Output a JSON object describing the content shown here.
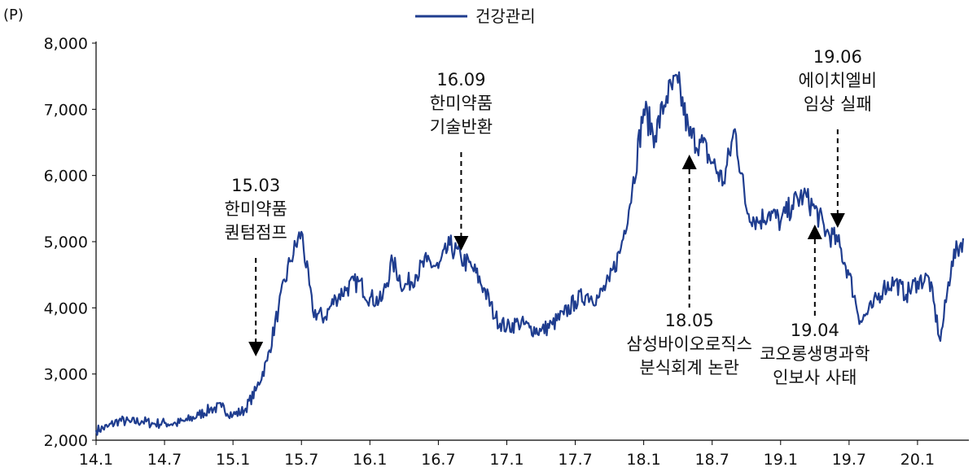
{
  "chart_data": {
    "type": "line",
    "unit_label": "(P)",
    "legend": [
      {
        "name": "건강관리",
        "color": "#1f3d8f"
      }
    ],
    "y_ticks": [
      "2,000",
      "3,000",
      "4,000",
      "5,000",
      "6,000",
      "7,000",
      "8,000"
    ],
    "ylim": [
      2000,
      8000
    ],
    "x_ticks": [
      "14.1",
      "14.7",
      "15.1",
      "15.7",
      "16.1",
      "16.7",
      "17.1",
      "17.7",
      "18.1",
      "18.7",
      "19.1",
      "19.7",
      "20.1"
    ],
    "series": [
      {
        "name": "건강관리",
        "color": "#1f3d8f",
        "points": [
          [
            "14.01",
            2150
          ],
          [
            "14.02",
            2200
          ],
          [
            "14.03",
            2300
          ],
          [
            "14.04",
            2270
          ],
          [
            "14.05",
            2290
          ],
          [
            "14.06",
            2250
          ],
          [
            "14.07",
            2260
          ],
          [
            "14.08",
            2250
          ],
          [
            "14.09",
            2300
          ],
          [
            "14.10",
            2380
          ],
          [
            "14.11",
            2470
          ],
          [
            "14.12",
            2500
          ],
          [
            "15.01",
            2380
          ],
          [
            "15.02",
            2450
          ],
          [
            "15.03",
            2750
          ],
          [
            "15.04",
            3200
          ],
          [
            "15.05",
            4000
          ],
          [
            "15.06",
            4700
          ],
          [
            "15.07",
            5150
          ],
          [
            "15.08",
            3950
          ],
          [
            "15.09",
            3850
          ],
          [
            "15.10",
            4150
          ],
          [
            "15.11",
            4300
          ],
          [
            "15.12",
            4400
          ],
          [
            "16.01",
            4150
          ],
          [
            "16.02",
            4100
          ],
          [
            "16.03",
            4700
          ],
          [
            "16.04",
            4300
          ],
          [
            "16.05",
            4500
          ],
          [
            "16.06",
            4700
          ],
          [
            "16.07",
            4600
          ],
          [
            "16.08",
            4950
          ],
          [
            "16.09",
            4750
          ],
          [
            "16.10",
            4600
          ],
          [
            "16.11",
            4300
          ],
          [
            "16.12",
            3850
          ],
          [
            "17.01",
            3700
          ],
          [
            "17.02",
            3780
          ],
          [
            "17.03",
            3700
          ],
          [
            "17.04",
            3650
          ],
          [
            "17.05",
            3750
          ],
          [
            "17.06",
            3900
          ],
          [
            "17.07",
            4100
          ],
          [
            "17.08",
            4200
          ],
          [
            "17.09",
            4150
          ],
          [
            "17.10",
            4400
          ],
          [
            "17.11",
            4900
          ],
          [
            "17.12",
            5800
          ],
          [
            "18.01",
            7000
          ],
          [
            "18.02",
            6600
          ],
          [
            "18.03",
            7200
          ],
          [
            "18.04",
            7400
          ],
          [
            "18.05",
            6600
          ],
          [
            "18.06",
            6500
          ],
          [
            "18.07",
            6200
          ],
          [
            "18.08",
            5900
          ],
          [
            "18.09",
            6700
          ],
          [
            "18.10",
            5500
          ],
          [
            "18.11",
            5300
          ],
          [
            "18.12",
            5450
          ],
          [
            "19.01",
            5300
          ],
          [
            "19.02",
            5550
          ],
          [
            "19.03",
            5700
          ],
          [
            "19.04",
            5500
          ],
          [
            "19.05",
            5150
          ],
          [
            "19.06",
            5000
          ],
          [
            "19.07",
            4500
          ],
          [
            "19.08",
            3800
          ],
          [
            "19.09",
            4000
          ],
          [
            "19.10",
            4300
          ],
          [
            "19.11",
            4400
          ],
          [
            "19.12",
            4200
          ],
          [
            "20.01",
            4400
          ],
          [
            "20.02",
            4450
          ],
          [
            "20.03",
            3500
          ],
          [
            "20.04",
            4700
          ],
          [
            "20.05",
            5050
          ]
        ]
      }
    ],
    "annotations": [
      {
        "id": "ann-1503",
        "lines": [
          "15.03",
          "한미약품",
          "퀀텀점프"
        ],
        "date": "15.03",
        "arrow": "down"
      },
      {
        "id": "ann-1609",
        "lines": [
          "16.09",
          "한미약품",
          "기술반환"
        ],
        "date": "16.09",
        "arrow": "down"
      },
      {
        "id": "ann-1805",
        "lines": [
          "18.05",
          "삼성바이오로직스",
          "분식회계 논란"
        ],
        "date": "18.05",
        "arrow": "up"
      },
      {
        "id": "ann-1906",
        "lines": [
          "19.06",
          "에이치엘비",
          "임상 실패"
        ],
        "date": "19.06",
        "arrow": "down"
      },
      {
        "id": "ann-1904",
        "lines": [
          "19.04",
          "코오롱생명과학",
          "인보사 사태"
        ],
        "date": "19.04",
        "arrow": "up"
      }
    ]
  }
}
